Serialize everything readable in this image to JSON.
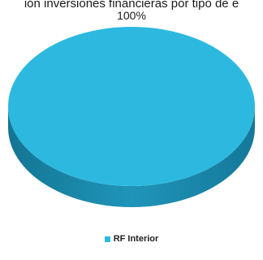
{
  "chart_data": {
    "type": "pie",
    "title": "ión inversiones financieras por tipo de e",
    "slices": [
      {
        "label": "RF Interior",
        "value": 100,
        "percent_label": "100%"
      }
    ],
    "colors": {
      "top": "#2db9df",
      "side": "#1c8fb3",
      "side_dark": "#14708e"
    },
    "legend_placement": "bottom"
  }
}
